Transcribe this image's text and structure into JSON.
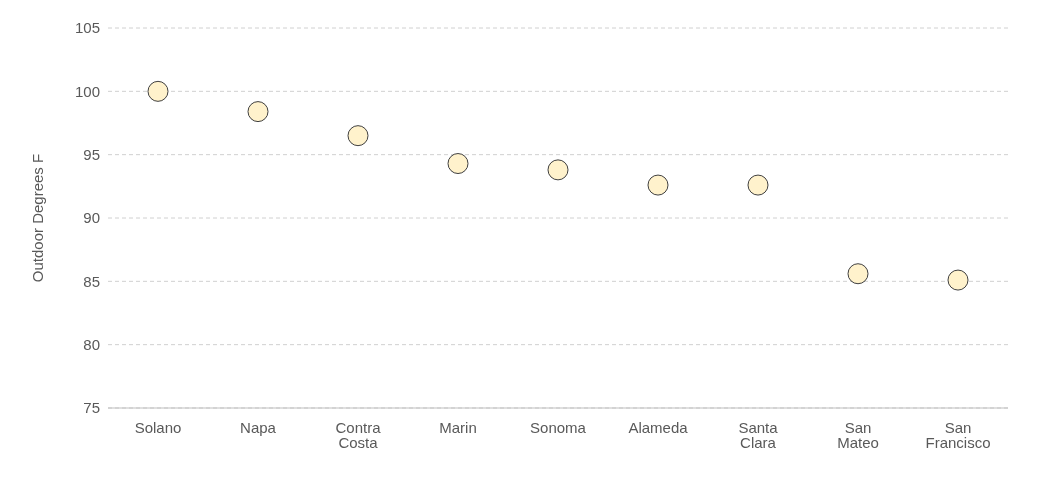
{
  "chart_data": {
    "type": "scatter",
    "ylabel": "Outdoor Degrees F",
    "categories": [
      "Solano",
      "Napa",
      "Contra Costa",
      "Marin",
      "Sonoma",
      "Alameda",
      "Santa Clara",
      "San Mateo",
      "San Francisco"
    ],
    "values": [
      100.0,
      98.4,
      96.5,
      94.3,
      93.8,
      92.6,
      92.6,
      85.6,
      85.1
    ],
    "color": "#fff2cc",
    "ylim": [
      75,
      105
    ],
    "yticks": [
      75,
      80,
      85,
      90,
      95,
      100,
      105
    ],
    "grid": "y",
    "marker": "circle"
  }
}
